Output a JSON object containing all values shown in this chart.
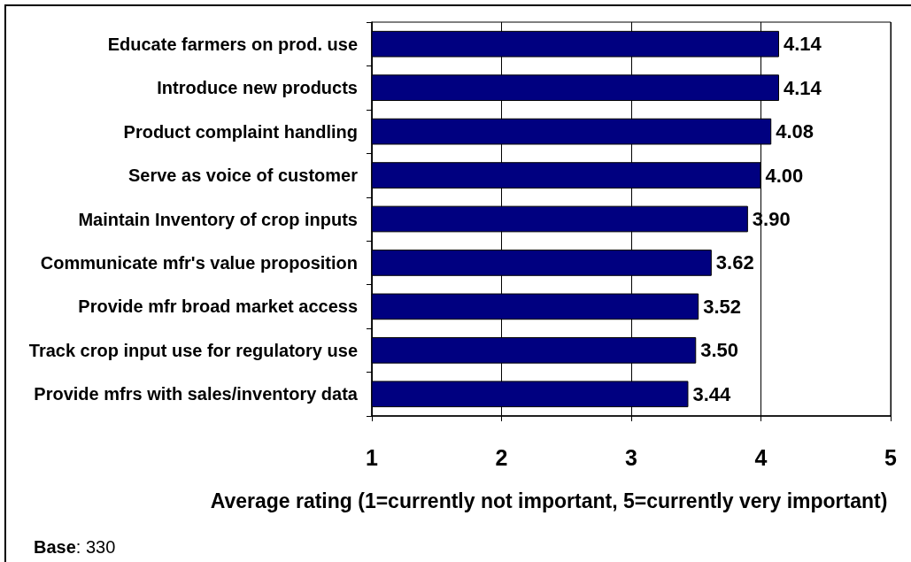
{
  "chart_data": {
    "type": "bar",
    "orientation": "horizontal",
    "categories": [
      "Educate farmers on prod. use",
      "Introduce new products",
      "Product complaint handling",
      "Serve as voice of customer",
      "Maintain Inventory of crop inputs",
      "Communicate mfr's value proposition",
      "Provide mfr broad market access",
      "Track crop input use for regulatory use",
      "Provide mfrs with sales/inventory data"
    ],
    "values": [
      4.14,
      4.14,
      4.08,
      4.0,
      3.9,
      3.62,
      3.52,
      3.5,
      3.44
    ],
    "value_labels": [
      "4.14",
      "4.14",
      "4.08",
      "4.00",
      "3.90",
      "3.62",
      "3.52",
      "3.50",
      "3.44"
    ],
    "color": "#000080",
    "xlabel": "Average rating (1=currently not important, 5=currently very important)",
    "xlim": [
      1,
      5
    ],
    "xticks": [
      1,
      2,
      3,
      4,
      5
    ],
    "grid": "x",
    "annotations": [
      "Base: 330"
    ]
  }
}
